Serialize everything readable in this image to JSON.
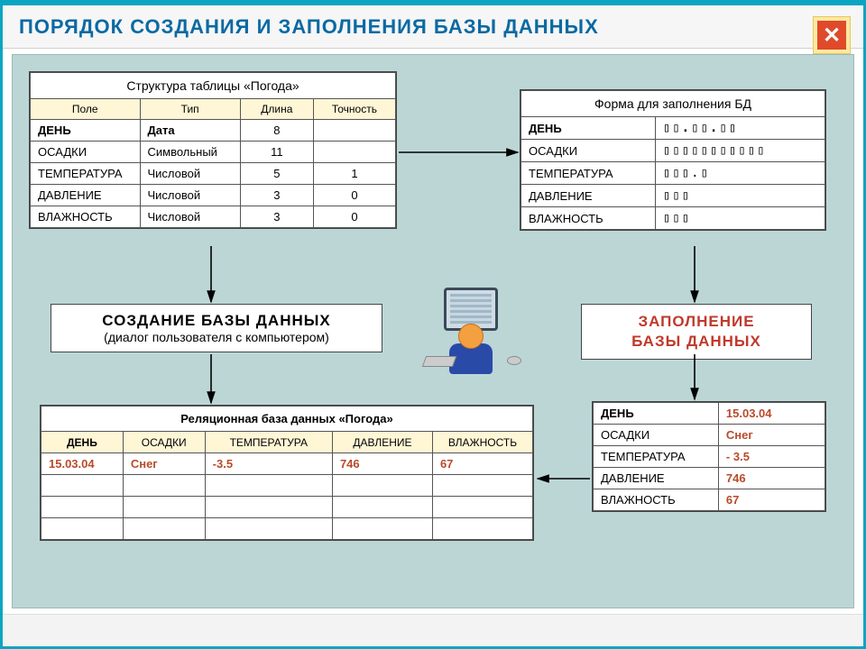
{
  "title": "ПОРЯДОК СОЗДАНИЯ И ЗАПОЛНЕНИЯ БАЗЫ ДАННЫХ",
  "colors": {
    "frame": "#0aa5c2",
    "canvas_bg": "#bcd6d6",
    "header_fill": "#fff6d6",
    "accent_red": "#b94a2a",
    "title_blue": "#0a6aa3",
    "close_bg": "#ffe9a0",
    "close_inner": "#e04a2a"
  },
  "struct": {
    "caption": "Структура таблицы «Погода»",
    "columns": [
      "Поле",
      "Тип",
      "Длина",
      "Точность"
    ],
    "rows": [
      [
        "ДЕНЬ",
        "Дата",
        "8",
        ""
      ],
      [
        "ОСАДКИ",
        "Символьный",
        "11",
        ""
      ],
      [
        "ТЕМПЕРАТУРА",
        "Числовой",
        "5",
        "1"
      ],
      [
        "ДАВЛЕНИЕ",
        "Числовой",
        "3",
        "0"
      ],
      [
        "ВЛАЖНОСТЬ",
        "Числовой",
        "3",
        "0"
      ]
    ]
  },
  "form": {
    "caption": "Форма для заполнения БД",
    "rows": [
      [
        "ДЕНЬ",
        "▯▯.▯▯.▯▯"
      ],
      [
        "ОСАДКИ",
        "▯▯▯▯▯▯▯▯▯▯▯"
      ],
      [
        "ТЕМПЕРАТУРА",
        "▯▯▯.▯"
      ],
      [
        "ДАВЛЕНИЕ",
        "▯▯▯"
      ],
      [
        "ВЛАЖНОСТЬ",
        "▯▯▯"
      ]
    ]
  },
  "label_create": {
    "line1": "СОЗДАНИЕ БАЗЫ ДАННЫХ",
    "line2": "(диалог пользователя с компьютером)"
  },
  "label_fill": {
    "line1": "ЗАПОЛНЕНИЕ",
    "line2": "БАЗЫ ДАННЫХ"
  },
  "rel": {
    "caption": "Реляционная база данных «Погода»",
    "columns": [
      "ДЕНЬ",
      "ОСАДКИ",
      "ТЕМПЕРАТУРА",
      "ДАВЛЕНИЕ",
      "ВЛАЖНОСТЬ"
    ],
    "row": [
      "15.03.04",
      "Снег",
      "-3.5",
      "746",
      "67"
    ],
    "empty_rows": 3
  },
  "rec": {
    "rows": [
      [
        "ДЕНЬ",
        "15.03.04"
      ],
      [
        "ОСАДКИ",
        "Снег"
      ],
      [
        "ТЕМПЕРАТУРА",
        "- 3.5"
      ],
      [
        "ДАВЛЕНИЕ",
        "746"
      ],
      [
        "ВЛАЖНОСТЬ",
        "67"
      ]
    ]
  },
  "arrows": {
    "color": "#000000",
    "stroke_width": 1.6,
    "segments": [
      {
        "points": [
          [
            428,
            108
          ],
          [
            560,
            108
          ]
        ],
        "arrow_end": true
      },
      {
        "points": [
          [
            220,
            212
          ],
          [
            220,
            274
          ]
        ],
        "arrow_end": true
      },
      {
        "points": [
          [
            756,
            212
          ],
          [
            756,
            274
          ]
        ],
        "arrow_end": true
      },
      {
        "points": [
          [
            220,
            332
          ],
          [
            220,
            386
          ]
        ],
        "arrow_end": true
      },
      {
        "points": [
          [
            756,
            332
          ],
          [
            756,
            382
          ]
        ],
        "arrow_end": true
      },
      {
        "points": [
          [
            640,
            470
          ],
          [
            582,
            470
          ]
        ],
        "arrow_end": true
      }
    ]
  }
}
